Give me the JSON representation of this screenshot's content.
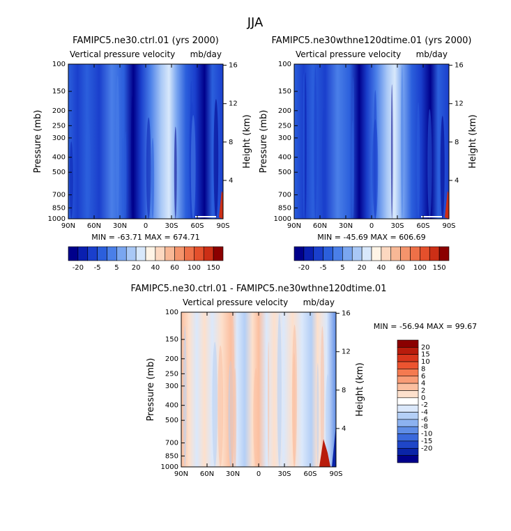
{
  "page_title": "JJA",
  "chart_data": [
    {
      "type": "heatmap",
      "title": "FAMIPC5.ne30.ctrl.01 (yrs 2000)",
      "subtitle_left": "Vertical pressure velocity",
      "subtitle_right": "mb/day",
      "xlabel": "",
      "ylabel": "Pressure (mb)",
      "ylabel_right": "Height (km)",
      "x_tick_labels": [
        "90N",
        "60N",
        "30N",
        "0",
        "30S",
        "60S",
        "90S"
      ],
      "y_tick_labels": [
        "100",
        "150",
        "200",
        "250",
        "300",
        "400",
        "500",
        "700",
        "850",
        "1000"
      ],
      "right_tick_labels": [
        "16",
        "12",
        "8",
        "4"
      ],
      "stats": "MIN = -63.71   MAX = 674.71",
      "colorbar": {
        "orientation": "horizontal",
        "labels": [
          "-20",
          "-5",
          "5",
          "20",
          "40",
          "60",
          "100",
          "150"
        ],
        "colors": [
          "#00008b",
          "#0a1fb0",
          "#1a3fcc",
          "#2b5fdc",
          "#4a7fe8",
          "#7aa6f0",
          "#a9c8f6",
          "#d8e8fb",
          "#fff4e6",
          "#fcd8c0",
          "#f8b896",
          "#f4946c",
          "#ee7048",
          "#e4502c",
          "#cc2f16",
          "#8b0000"
        ]
      }
    },
    {
      "type": "heatmap",
      "title": "FAMIPC5.ne30wthne120dtime.01 (yrs 2000)",
      "subtitle_left": "Vertical pressure velocity",
      "subtitle_right": "mb/day",
      "xlabel": "",
      "ylabel": "Pressure (mb)",
      "ylabel_right": "Height (km)",
      "x_tick_labels": [
        "90N",
        "60N",
        "30N",
        "0",
        "30S",
        "60S",
        "90S"
      ],
      "y_tick_labels": [
        "100",
        "150",
        "200",
        "250",
        "300",
        "400",
        "500",
        "700",
        "850",
        "1000"
      ],
      "right_tick_labels": [
        "16",
        "12",
        "8",
        "4"
      ],
      "stats": "MIN = -45.69   MAX = 606.69",
      "colorbar": {
        "orientation": "horizontal",
        "labels": [
          "-20",
          "-5",
          "5",
          "20",
          "40",
          "60",
          "100",
          "150"
        ],
        "colors": [
          "#00008b",
          "#0a1fb0",
          "#1a3fcc",
          "#2b5fdc",
          "#4a7fe8",
          "#7aa6f0",
          "#a9c8f6",
          "#d8e8fb",
          "#fff4e6",
          "#fcd8c0",
          "#f8b896",
          "#f4946c",
          "#ee7048",
          "#e4502c",
          "#cc2f16",
          "#8b0000"
        ]
      }
    },
    {
      "type": "heatmap",
      "title": "FAMIPC5.ne30.ctrl.01 - FAMIPC5.ne30wthne120dtime.01",
      "subtitle_left": "Vertical pressure velocity",
      "subtitle_right": "mb/day",
      "xlabel": "",
      "ylabel": "Pressure (mb)",
      "ylabel_right": "Height (km)",
      "x_tick_labels": [
        "90N",
        "60N",
        "30N",
        "0",
        "30S",
        "60S",
        "90S"
      ],
      "y_tick_labels": [
        "100",
        "150",
        "200",
        "250",
        "300",
        "400",
        "500",
        "700",
        "850",
        "1000"
      ],
      "right_tick_labels": [
        "16",
        "12",
        "8",
        "4"
      ],
      "stats": "MIN = -56.94   MAX =  99.67",
      "colorbar": {
        "orientation": "vertical",
        "labels": [
          "20",
          "15",
          "10",
          "8",
          "6",
          "4",
          "2",
          "0",
          "-2",
          "-4",
          "-6",
          "-8",
          "-10",
          "-15",
          "-20"
        ],
        "colors": [
          "#8b0000",
          "#b81c0c",
          "#d8361c",
          "#ec5430",
          "#f47a50",
          "#f89c76",
          "#fbbfa0",
          "#fde0cc",
          "#ffffff",
          "#dbe8fb",
          "#b4cff6",
          "#8cb2f0",
          "#5f8de6",
          "#3a69dc",
          "#1f46c8",
          "#0a24a8",
          "#00008b"
        ]
      }
    }
  ]
}
